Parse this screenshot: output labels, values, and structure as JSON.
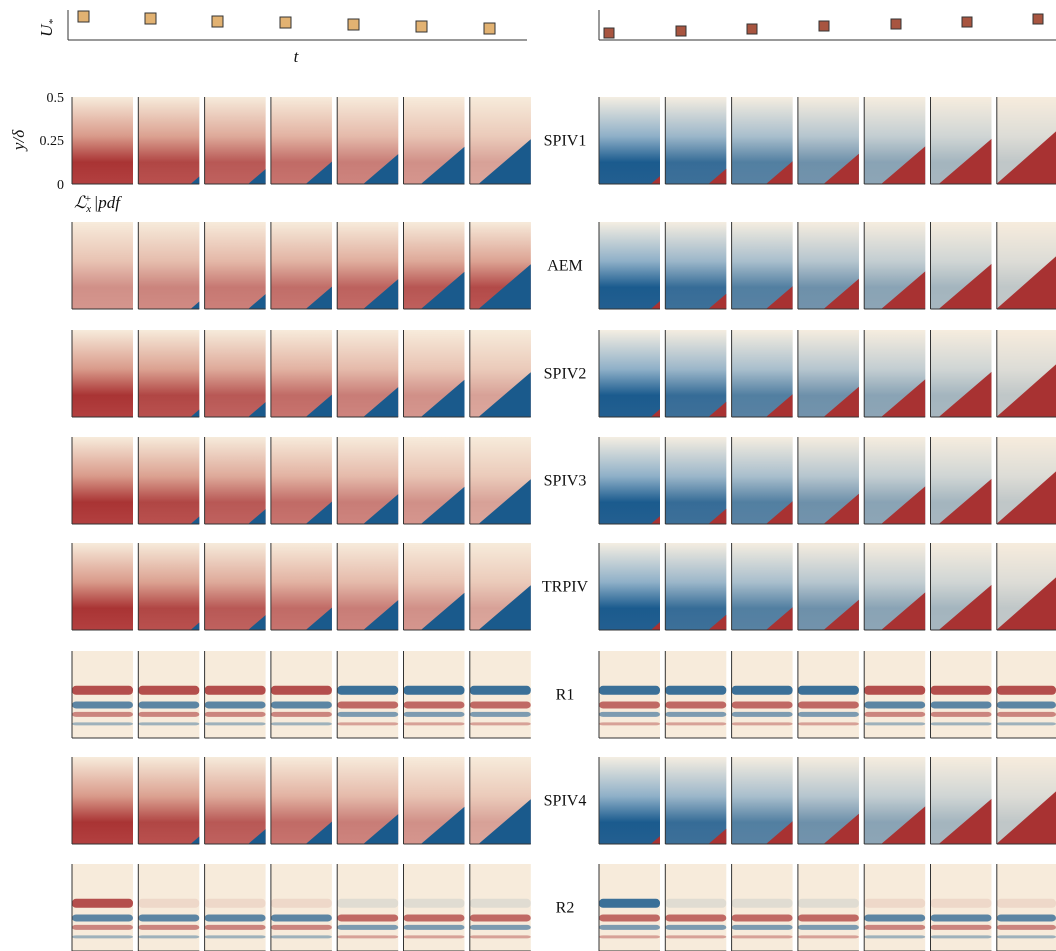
{
  "top": {
    "y_label": "U",
    "y_label_sub": "*",
    "x_label": "t"
  },
  "panel_axis": {
    "y_label": "y/δ",
    "yticks": [
      "0.5",
      "0.25",
      "0"
    ],
    "x_label": {
      "main": "ℒ",
      "sub": "x",
      "sup": "+",
      "tail": "|pdf"
    }
  },
  "rows": [
    "SPIV1",
    "AEM",
    "SPIV2",
    "SPIV3",
    "TRPIV",
    "R1",
    "SPIV4",
    "R2"
  ]
}
